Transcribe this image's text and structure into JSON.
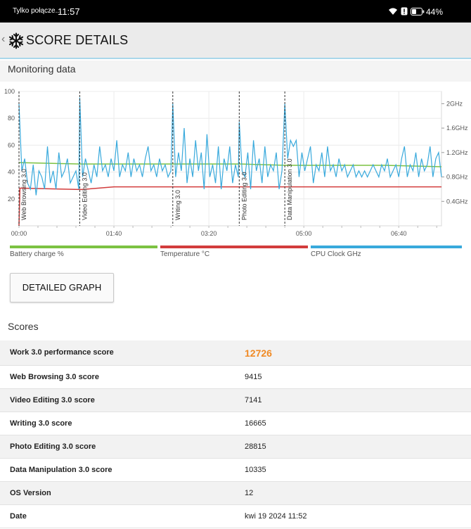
{
  "status": {
    "carrier": "Tylko połącze...",
    "time": "11:57",
    "battery": "44%"
  },
  "appbar": {
    "title": "SCORE DETAILS"
  },
  "monitor": {
    "title": "Monitoring data"
  },
  "chart_data": {
    "type": "line",
    "x_ticks": [
      "00:00",
      "01:40",
      "03:20",
      "05:00",
      "06:40"
    ],
    "y_left_ticks": [
      "100",
      "80",
      "60",
      "40",
      "20"
    ],
    "y_right_ticks": [
      "2GHz",
      "1.6GHz",
      "1.2GHz",
      "0.8GHz",
      "0.4GHz"
    ],
    "ylim_left": [
      0,
      100
    ],
    "ylim_right_ghz": [
      0,
      2.2
    ],
    "x_range_minutes": [
      0,
      445
    ],
    "markers": [
      {
        "label": "Web Browsing 3.0",
        "x": 0
      },
      {
        "label": "Video Editing 3.0",
        "x": 64
      },
      {
        "label": "Writing 3.0",
        "x": 162
      },
      {
        "label": "Photo Editing 3.0",
        "x": 232
      },
      {
        "label": "Data Manipulation 3.0",
        "x": 280
      }
    ],
    "series": [
      {
        "name": "Battery charge %",
        "color": "#7cc242",
        "x": [
          0,
          3,
          64,
          66,
          162,
          164,
          232,
          234,
          280,
          282,
          320,
          325,
          380,
          385,
          445
        ],
        "values": [
          47,
          47,
          46,
          46,
          46,
          46,
          46,
          46,
          45,
          45,
          45,
          45,
          45,
          45,
          44
        ]
      },
      {
        "name": "Temperature °C",
        "color": "#d23c3c",
        "x": [
          0,
          1,
          3,
          64,
          66,
          100,
          162,
          164,
          232,
          234,
          280,
          282,
          445
        ],
        "values": [
          0,
          28,
          28,
          27,
          27,
          29,
          29,
          29,
          29,
          29,
          29,
          29,
          29
        ]
      },
      {
        "name": "CPU Clock GHz",
        "color": "#38a9dc",
        "x": [
          0,
          3,
          6,
          9,
          12,
          15,
          18,
          21,
          24,
          27,
          30,
          33,
          36,
          39,
          42,
          45,
          48,
          51,
          54,
          57,
          60,
          63,
          64,
          67,
          70,
          73,
          76,
          79,
          82,
          85,
          88,
          91,
          94,
          97,
          100,
          103,
          106,
          109,
          112,
          115,
          118,
          121,
          124,
          127,
          130,
          133,
          136,
          139,
          142,
          145,
          148,
          151,
          154,
          157,
          160,
          162,
          165,
          168,
          171,
          174,
          177,
          180,
          183,
          186,
          189,
          192,
          195,
          198,
          201,
          204,
          207,
          210,
          213,
          216,
          219,
          222,
          225,
          228,
          231,
          232,
          235,
          238,
          241,
          244,
          247,
          250,
          253,
          256,
          259,
          262,
          265,
          268,
          271,
          274,
          277,
          280,
          283,
          286,
          289,
          292,
          295,
          298,
          301,
          304,
          307,
          310,
          313,
          316,
          319,
          322,
          325,
          328,
          331,
          334,
          337,
          340,
          343,
          346,
          349,
          352,
          355,
          358,
          361,
          364,
          367,
          370,
          373,
          376,
          379,
          382,
          385,
          388,
          391,
          394,
          397,
          400,
          403,
          406,
          409,
          412,
          415,
          418,
          421,
          424,
          427,
          430,
          433,
          436,
          439,
          442,
          445
        ],
        "values": [
          2.0,
          0.9,
          1.1,
          0.7,
          0.6,
          1.0,
          0.5,
          0.9,
          0.8,
          0.6,
          1.3,
          0.7,
          0.9,
          0.6,
          1.2,
          0.8,
          0.9,
          1.1,
          0.7,
          0.8,
          0.9,
          0.6,
          2.1,
          0.8,
          1.1,
          0.9,
          0.7,
          1.0,
          0.8,
          1.3,
          0.9,
          1.0,
          0.8,
          1.1,
          0.9,
          1.4,
          0.8,
          1.0,
          0.9,
          1.2,
          0.8,
          1.1,
          0.9,
          1.0,
          0.8,
          1.1,
          1.3,
          0.9,
          1.0,
          0.8,
          1.1,
          0.9,
          1.0,
          0.8,
          0.9,
          2.0,
          0.8,
          1.2,
          0.9,
          1.6,
          0.7,
          1.1,
          0.8,
          1.4,
          0.9,
          1.2,
          0.6,
          1.5,
          0.8,
          1.0,
          0.7,
          1.3,
          0.6,
          1.1,
          0.9,
          1.3,
          0.7,
          1.0,
          0.8,
          1.7,
          0.9,
          0.8,
          1.2,
          0.6,
          1.4,
          0.9,
          1.1,
          0.7,
          1.3,
          0.8,
          1.0,
          0.9,
          1.2,
          0.6,
          0.9,
          2.0,
          1.1,
          1.4,
          1.3,
          1.4,
          0.8,
          1.2,
          0.9,
          1.1,
          1.3,
          0.7,
          1.0,
          0.9,
          1.2,
          0.8,
          1.3,
          0.9,
          1.0,
          0.8,
          1.1,
          0.9,
          1.0,
          0.8,
          0.9,
          1.0,
          0.8,
          0.9,
          0.8,
          0.9,
          0.8,
          0.9,
          1.0,
          0.9,
          0.8,
          1.0,
          0.9,
          1.1,
          0.8,
          0.9,
          1.0,
          0.8,
          1.1,
          1.3,
          0.8,
          1.0,
          0.9,
          1.2,
          0.8,
          1.1,
          0.9,
          1.0,
          1.3,
          0.8,
          1.1,
          1.2,
          0.8
        ]
      }
    ]
  },
  "legend": [
    {
      "label": "Battery charge %",
      "color": "#7cc242"
    },
    {
      "label": "Temperature °C",
      "color": "#d23c3c"
    },
    {
      "label": "CPU Clock GHz",
      "color": "#38a9dc"
    }
  ],
  "detailed_graph_label": "DETAILED GRAPH",
  "scores_title": "Scores",
  "scores": [
    {
      "label": "Work 3.0 performance score",
      "value": "12726"
    },
    {
      "label": "Web Browsing 3.0 score",
      "value": "9415"
    },
    {
      "label": "Video Editing 3.0 score",
      "value": "7141"
    },
    {
      "label": "Writing 3.0 score",
      "value": "16665"
    },
    {
      "label": "Photo Editing 3.0 score",
      "value": "28815"
    },
    {
      "label": "Data Manipulation 3.0 score",
      "value": "10335"
    },
    {
      "label": "OS Version",
      "value": "12"
    },
    {
      "label": "Date",
      "value": "kwi 19 2024 11:52"
    }
  ]
}
